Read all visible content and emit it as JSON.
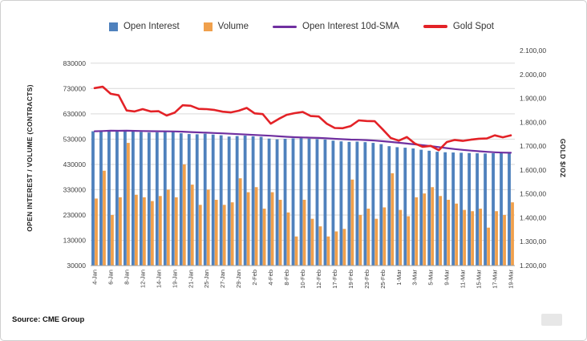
{
  "source_note": "Source: CME Group",
  "legend": {
    "open_interest": "Open Interest",
    "volume": "Volume",
    "sma": "Open Interest 10d-SMA",
    "gold_spot": "Gold Spot"
  },
  "axes": {
    "left_title": "OPEN INTEREST / VOLUME (CONTRACTS)",
    "right_title": "GOLD $/OZ",
    "left_tick_values": [
      30000,
      130000,
      230000,
      330000,
      430000,
      530000,
      630000,
      730000,
      830000
    ],
    "left_tick_labels": [
      "30000",
      "130000",
      "230000",
      "330000",
      "430000",
      "530000",
      "630000",
      "730000",
      "830000"
    ],
    "right_tick_values": [
      1200,
      1300,
      1400,
      1500,
      1600,
      1700,
      1800,
      1900,
      2000,
      2100
    ],
    "right_tick_labels": [
      "1.200,00",
      "1.300,00",
      "1.400,00",
      "1.500,00",
      "1.600,00",
      "1.700,00",
      "1.800,00",
      "1.900,00",
      "2.000,00",
      "2.100,00"
    ],
    "left_range": [
      30000,
      880000
    ],
    "right_range": [
      1200,
      2100
    ]
  },
  "chart_data": {
    "type": "combo",
    "title": "",
    "ylabel_left": "OPEN INTEREST / VOLUME (CONTRACTS)",
    "ylabel_right": "GOLD $/OZ",
    "ylim_left": [
      30000,
      880000
    ],
    "ylim_right": [
      1200,
      2100
    ],
    "grid": "horizontal",
    "legend_position": "top",
    "x_label_every": 2,
    "x": [
      "4-Jan",
      "5-Jan",
      "6-Jan",
      "7-Jan",
      "8-Jan",
      "11-Jan",
      "12-Jan",
      "13-Jan",
      "14-Jan",
      "15-Jan",
      "19-Jan",
      "20-Jan",
      "21-Jan",
      "22-Jan",
      "25-Jan",
      "26-Jan",
      "27-Jan",
      "28-Jan",
      "29-Jan",
      "1-Feb",
      "2-Feb",
      "3-Feb",
      "4-Feb",
      "5-Feb",
      "8-Feb",
      "9-Feb",
      "10-Feb",
      "11-Feb",
      "12-Feb",
      "16-Feb",
      "17-Feb",
      "18-Feb",
      "19-Feb",
      "22-Feb",
      "23-Feb",
      "24-Feb",
      "25-Feb",
      "26-Feb",
      "1-Mar",
      "2-Mar",
      "3-Mar",
      "4-Mar",
      "5-Mar",
      "8-Mar",
      "9-Mar",
      "10-Mar",
      "11-Mar",
      "12-Mar",
      "15-Mar",
      "16-Mar",
      "17-Mar",
      "18-Mar",
      "19-Mar"
    ],
    "series": [
      {
        "name": "Open Interest",
        "type": "bar",
        "axis": "left",
        "color": "#4F81BD",
        "values": [
          561000,
          563000,
          565000,
          562000,
          564000,
          561000,
          558000,
          556000,
          557000,
          559000,
          558000,
          553000,
          550000,
          549000,
          551000,
          548000,
          545000,
          540000,
          542000,
          544000,
          541000,
          539000,
          532000,
          529000,
          531000,
          533000,
          534000,
          532000,
          530000,
          528000,
          524000,
          521000,
          519000,
          520000,
          518000,
          515000,
          510000,
          502000,
          498000,
          496000,
          493000,
          488000,
          484000,
          480000,
          478000,
          477000,
          476000,
          475000,
          474000,
          473000,
          474000,
          475000,
          476000
        ]
      },
      {
        "name": "Volume",
        "type": "bar",
        "axis": "left",
        "color": "#F0A04C",
        "values": [
          295000,
          405000,
          230000,
          300000,
          515000,
          310000,
          300000,
          285000,
          305000,
          330000,
          300000,
          430000,
          350000,
          270000,
          330000,
          290000,
          270000,
          280000,
          375000,
          320000,
          340000,
          255000,
          320000,
          290000,
          240000,
          145000,
          290000,
          215000,
          185000,
          145000,
          165000,
          175000,
          370000,
          230000,
          255000,
          215000,
          260000,
          395000,
          250000,
          225000,
          300000,
          315000,
          340000,
          305000,
          290000,
          275000,
          250000,
          245000,
          255000,
          180000,
          245000,
          230000,
          280000
        ]
      },
      {
        "name": "Open Interest 10d-SMA",
        "type": "line",
        "axis": "left",
        "color": "#7030A0",
        "values": [
          561000,
          562000,
          563000,
          562750,
          563000,
          562670,
          562000,
          561250,
          560780,
          560600,
          560300,
          559300,
          557800,
          556500,
          555200,
          553900,
          552600,
          551000,
          549500,
          548000,
          546300,
          544900,
          543100,
          541100,
          539100,
          537600,
          536500,
          535700,
          534500,
          532900,
          531200,
          529400,
          528100,
          527200,
          525900,
          524100,
          521700,
          518700,
          515500,
          512300,
          509200,
          505900,
          502400,
          498400,
          494400,
          490600,
          487200,
          484500,
          482100,
          479800,
          477900,
          476600,
          475800
        ]
      },
      {
        "name": "Gold Spot",
        "type": "line",
        "axis": "right",
        "color": "#E32227",
        "values": [
          1943,
          1949,
          1919,
          1913,
          1849,
          1845,
          1855,
          1845,
          1846,
          1828,
          1840,
          1871,
          1869,
          1856,
          1855,
          1851,
          1844,
          1841,
          1848,
          1860,
          1837,
          1834,
          1794,
          1814,
          1831,
          1838,
          1843,
          1826,
          1824,
          1794,
          1776,
          1775,
          1784,
          1808,
          1805,
          1804,
          1770,
          1734,
          1723,
          1738,
          1711,
          1697,
          1701,
          1683,
          1717,
          1726,
          1722,
          1727,
          1731,
          1732,
          1745,
          1737,
          1745
        ]
      }
    ]
  }
}
